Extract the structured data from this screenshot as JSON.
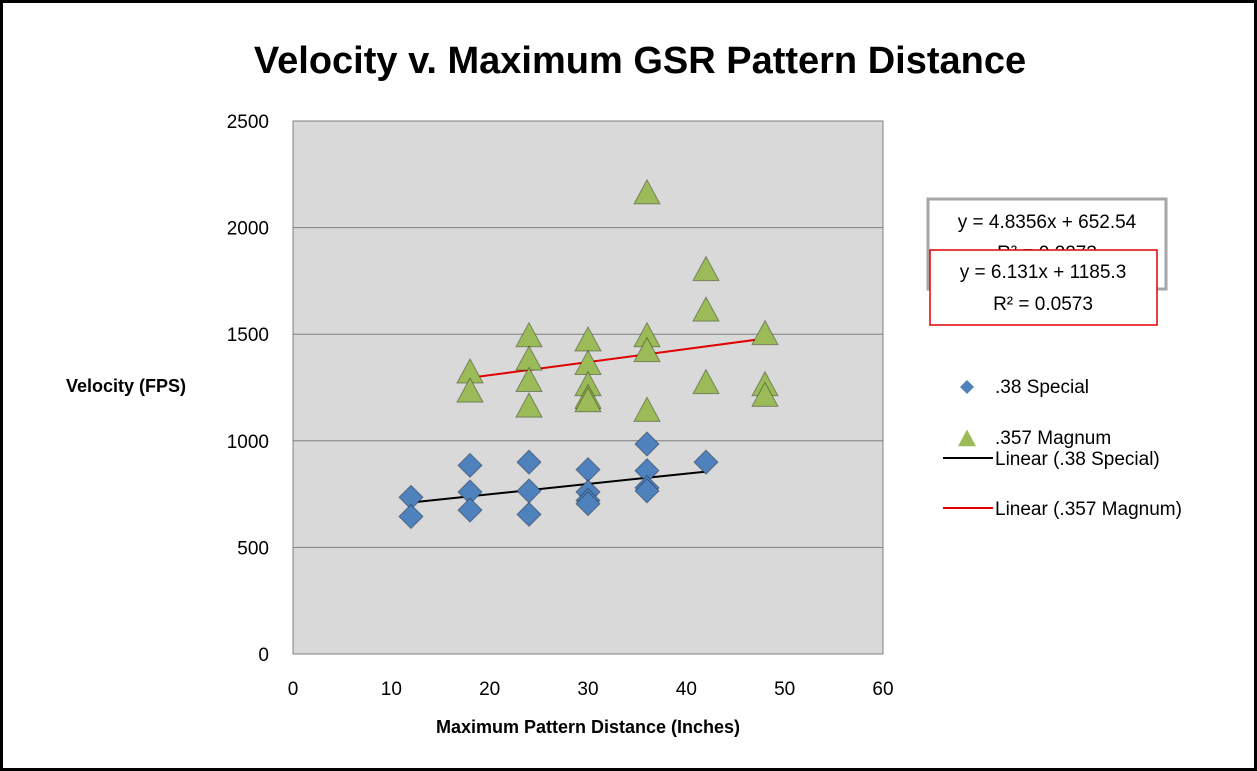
{
  "chart_data": {
    "type": "scatter",
    "title": "Velocity v. Maximum GSR Pattern Distance",
    "xlabel": "Maximum Pattern Distance (Inches)",
    "ylabel": "Velocity (FPS)",
    "xlim": [
      0,
      60
    ],
    "ylim": [
      0,
      2500
    ],
    "xticks": [
      "0",
      "10",
      "20",
      "30",
      "40",
      "50",
      "60"
    ],
    "yticks": [
      "0",
      "500",
      "1000",
      "1500",
      "2000",
      "2500"
    ],
    "grid": "horizontal",
    "legend_position": "right",
    "series": [
      {
        "name": ".38 Special",
        "marker": "diamond",
        "color": "#4F81BD",
        "points": [
          [
            12,
            735
          ],
          [
            12,
            645
          ],
          [
            18,
            885
          ],
          [
            18,
            760
          ],
          [
            18,
            675
          ],
          [
            24,
            900
          ],
          [
            24,
            765
          ],
          [
            24,
            655
          ],
          [
            30,
            865
          ],
          [
            30,
            760
          ],
          [
            30,
            720
          ],
          [
            30,
            705
          ],
          [
            36,
            985
          ],
          [
            36,
            860
          ],
          [
            36,
            780
          ],
          [
            36,
            765
          ],
          [
            42,
            900
          ]
        ]
      },
      {
        "name": ".357 Magnum",
        "marker": "triangle",
        "color": "#9BBB59",
        "points": [
          [
            18,
            1320
          ],
          [
            18,
            1230
          ],
          [
            24,
            1490
          ],
          [
            24,
            1380
          ],
          [
            24,
            1280
          ],
          [
            24,
            1160
          ],
          [
            30,
            1470
          ],
          [
            30,
            1360
          ],
          [
            30,
            1260
          ],
          [
            30,
            1200
          ],
          [
            30,
            1185
          ],
          [
            36,
            2160
          ],
          [
            36,
            1490
          ],
          [
            36,
            1420
          ],
          [
            36,
            1140
          ],
          [
            42,
            1800
          ],
          [
            42,
            1610
          ],
          [
            42,
            1270
          ],
          [
            48,
            1500
          ],
          [
            48,
            1260
          ],
          [
            48,
            1210
          ]
        ]
      }
    ],
    "trendlines": [
      {
        "name": "Linear (.38 Special)",
        "color": "#000000",
        "slope": 4.8356,
        "intercept": 652.54,
        "x_range": [
          12,
          42
        ],
        "equation": "y = 4.8356x + 652.54",
        "r2": "R² = 0.2273",
        "box_border": "#A6A6A6"
      },
      {
        "name": "Linear (.357 Magnum)",
        "color": "#E00000",
        "slope": 6.131,
        "intercept": 1185.3,
        "x_range": [
          18,
          48
        ],
        "equation": "y = 6.131x + 1185.3",
        "r2": "R² = 0.0573",
        "box_border": "#E00000"
      }
    ]
  }
}
